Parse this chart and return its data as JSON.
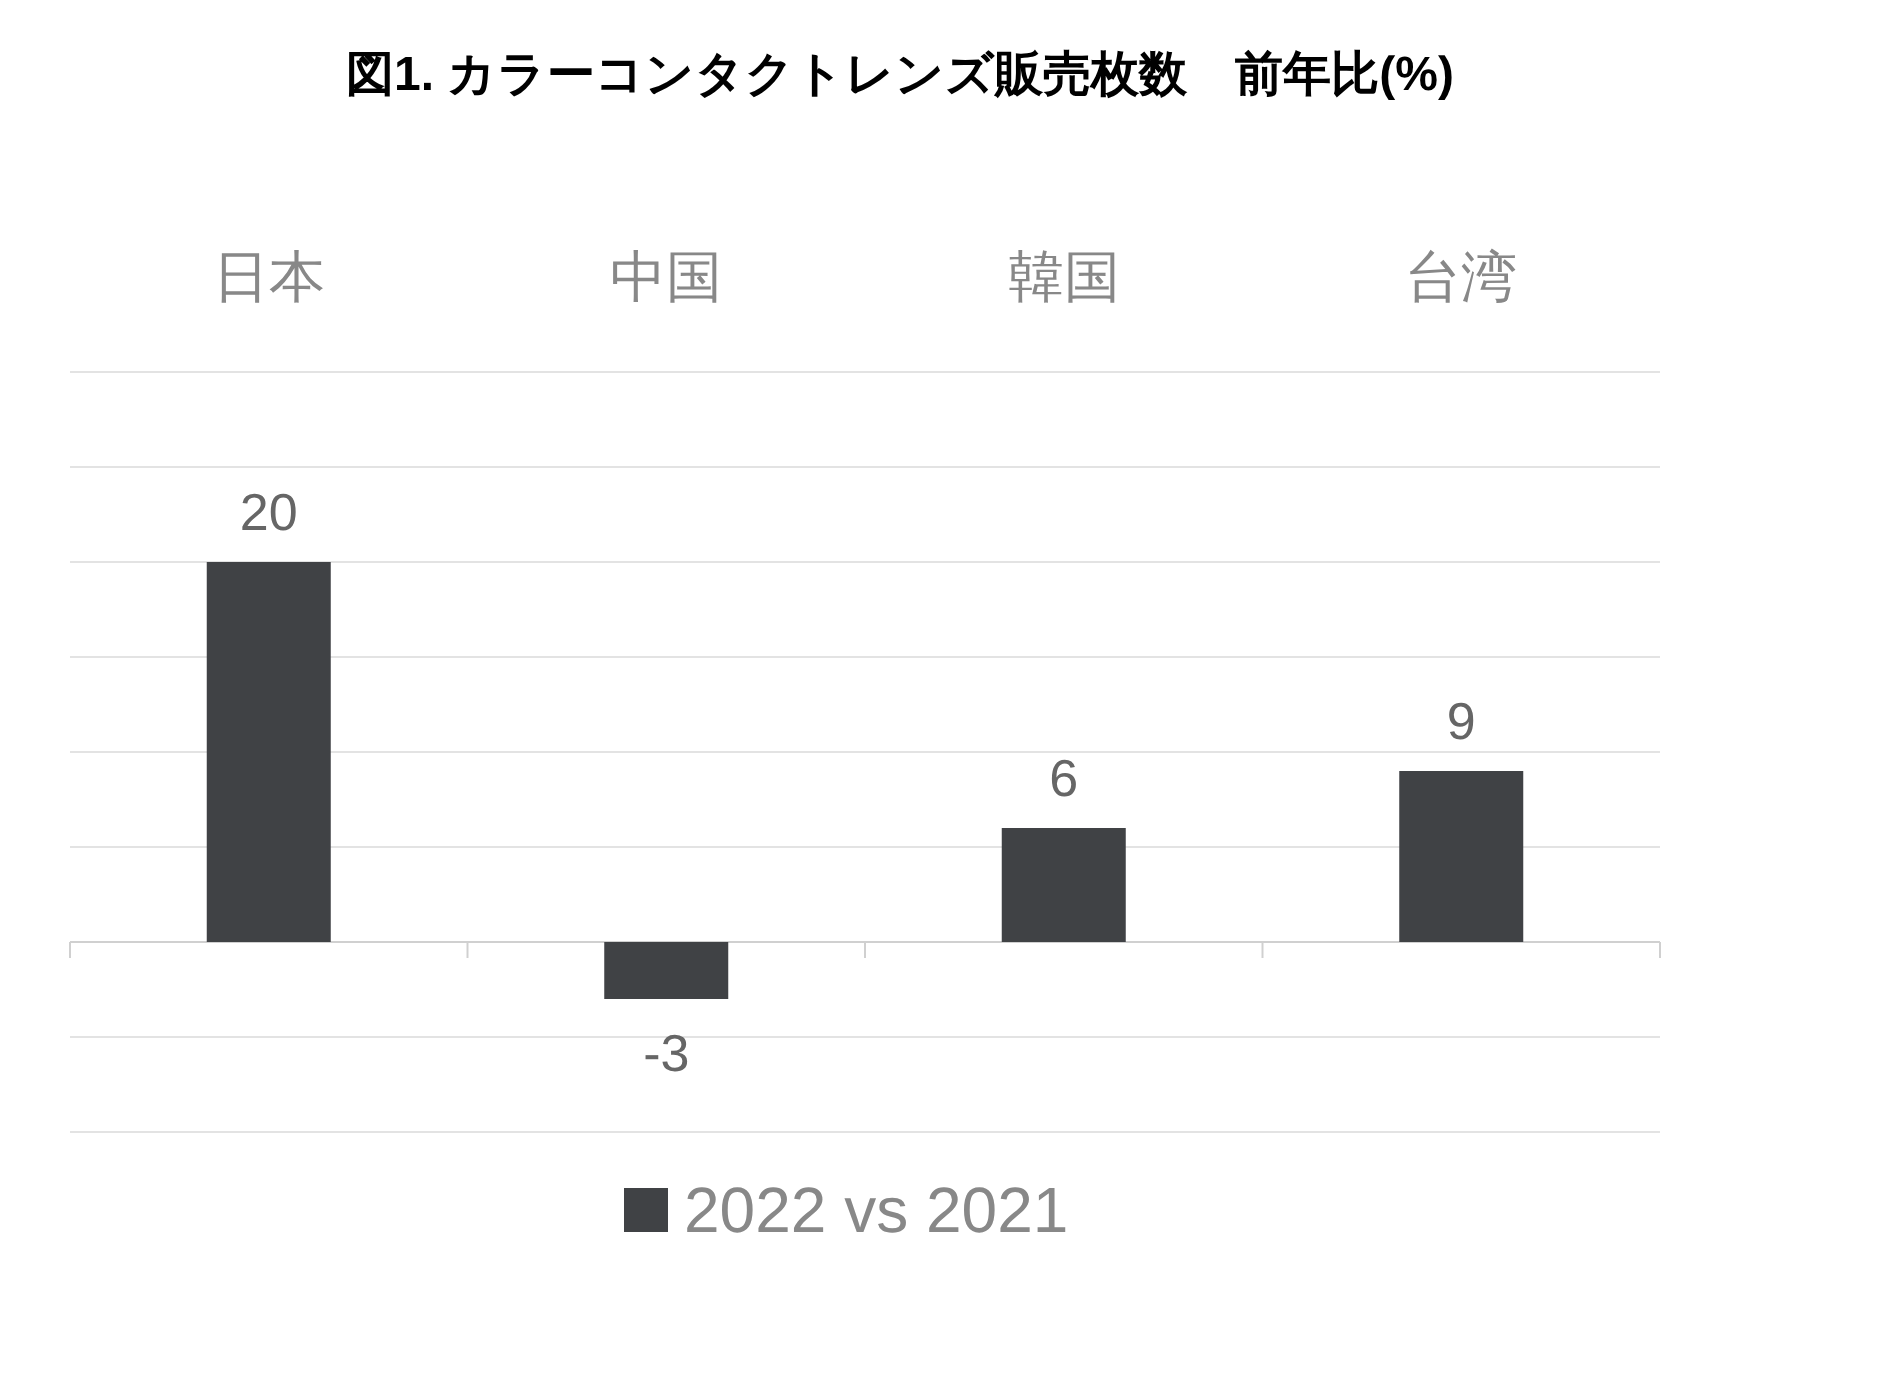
{
  "chart_data": {
    "type": "bar",
    "title": "図1. カラーコンタクトレンズ販売枚数　前年比(%)",
    "categories": [
      "日本",
      "中国",
      "韓国",
      "台湾"
    ],
    "series": [
      {
        "name": "2022 vs 2021",
        "color": "#404245",
        "values": [
          20,
          -3,
          6,
          9
        ]
      }
    ],
    "ylim": [
      -10,
      30
    ],
    "yticks": [
      {
        "value": -10,
        "label": null
      },
      {
        "value": -5,
        "label": null
      },
      {
        "value": 0,
        "label": null
      },
      {
        "value": 5,
        "label": null
      },
      {
        "value": 10,
        "label": null
      },
      {
        "value": 15,
        "label": null
      },
      {
        "value": 20,
        "label": null
      },
      {
        "value": 25,
        "label": null
      },
      {
        "value": 30,
        "label": null
      }
    ],
    "tick_labels": "x",
    "grid": "y",
    "data_labels": true,
    "legend": "bottom"
  }
}
